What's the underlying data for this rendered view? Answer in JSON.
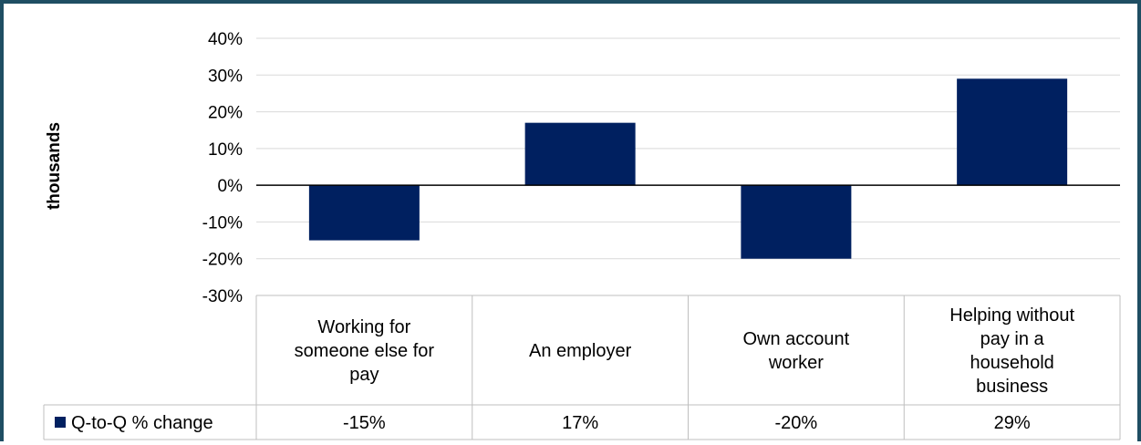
{
  "chart_data": {
    "type": "bar",
    "title": "",
    "xlabel": "",
    "ylabel": "thousands",
    "ylim": [
      -30,
      40
    ],
    "yticks": [
      40,
      30,
      20,
      10,
      0,
      -10,
      -20,
      -30
    ],
    "ytick_labels": [
      "40%",
      "30%",
      "20%",
      "10%",
      "0%",
      "-10%",
      "-20%",
      "-30%"
    ],
    "grid": true,
    "legend_placement": "data-table-left",
    "categories": [
      [
        "Working for",
        "someone else for",
        "pay"
      ],
      [
        "An employer"
      ],
      [
        "Own account",
        "worker"
      ],
      [
        "Helping without",
        "pay in a",
        "household",
        "business"
      ]
    ],
    "series": [
      {
        "name": "Q-to-Q % change",
        "values": [
          -15,
          17,
          -20,
          29
        ],
        "labels": [
          "-15%",
          "17%",
          "-20%",
          "29%"
        ],
        "color": "#002060"
      }
    ]
  }
}
